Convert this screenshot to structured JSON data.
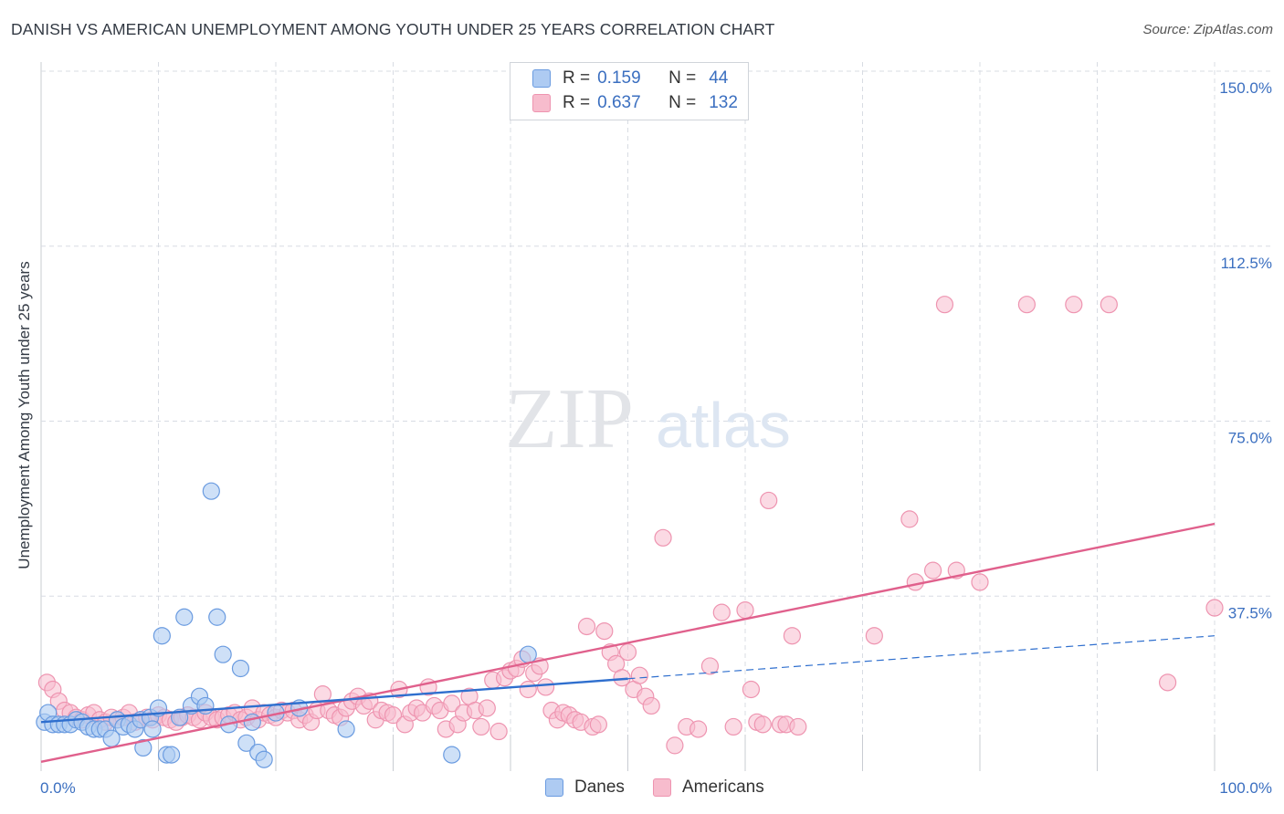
{
  "header": {
    "title": "DANISH VS AMERICAN UNEMPLOYMENT AMONG YOUTH UNDER 25 YEARS CORRELATION CHART",
    "source": "Source: ZipAtlas.com"
  },
  "watermark": {
    "zip": "ZIP",
    "atlas": "atlas"
  },
  "legend": {
    "items": [
      {
        "r_label": "R =",
        "r_value": "0.159",
        "n_label": "N =",
        "n_value": "44"
      },
      {
        "r_label": "R =",
        "r_value": "0.637",
        "n_label": "N =",
        "n_value": "132"
      }
    ]
  },
  "bottom_legend": {
    "danes": "Danes",
    "americans": "Americans"
  },
  "colors": {
    "danes_fill": "#aecbf2",
    "danes_stroke": "#6a9be0",
    "danes_line": "#2f6fce",
    "americans_fill": "#f7bccd",
    "americans_stroke": "#ee94b0",
    "americans_line": "#e0608c",
    "tick_label": "#3b6fc0",
    "grid": "#d8dce3"
  },
  "chart_data": {
    "type": "scatter",
    "title": "DANISH VS AMERICAN UNEMPLOYMENT AMONG YOUTH UNDER 25 YEARS CORRELATION CHART",
    "xlabel": "",
    "ylabel": "Unemployment Among Youth under 25 years",
    "xlim": [
      0,
      100
    ],
    "ylim": [
      0,
      150
    ],
    "x_tick_labels": [
      "0.0%",
      "100.0%"
    ],
    "y_ticks": [
      37.5,
      75.0,
      112.5,
      150.0
    ],
    "y_tick_labels": [
      "37.5%",
      "75.0%",
      "112.5%",
      "150.0%"
    ],
    "grid": true,
    "series": [
      {
        "name": "Danes",
        "r": 0.159,
        "n": 44,
        "trend": {
          "x0": 0,
          "y0": 10.5,
          "x1": 50,
          "y1": 19.8,
          "dashed_to_x": 100,
          "dashed_to_y": 29.0
        },
        "points": [
          [
            0.3,
            10.5
          ],
          [
            0.6,
            12.5
          ],
          [
            1.0,
            10.0
          ],
          [
            1.5,
            10.0
          ],
          [
            2.0,
            10.0
          ],
          [
            2.5,
            10.0
          ],
          [
            3.0,
            11.0
          ],
          [
            3.5,
            10.5
          ],
          [
            4.0,
            9.5
          ],
          [
            4.5,
            9.0
          ],
          [
            5.0,
            9.0
          ],
          [
            5.5,
            9.0
          ],
          [
            6.0,
            7.0
          ],
          [
            6.5,
            11.0
          ],
          [
            7.0,
            9.5
          ],
          [
            7.5,
            10.0
          ],
          [
            8.0,
            9.0
          ],
          [
            8.5,
            11.0
          ],
          [
            8.7,
            5.0
          ],
          [
            9.3,
            11.5
          ],
          [
            9.5,
            9.0
          ],
          [
            10.0,
            13.5
          ],
          [
            10.3,
            29.0
          ],
          [
            10.7,
            3.5
          ],
          [
            11.1,
            3.5
          ],
          [
            11.8,
            11.5
          ],
          [
            12.2,
            33.0
          ],
          [
            12.8,
            14.0
          ],
          [
            13.5,
            16.0
          ],
          [
            14.0,
            14.0
          ],
          [
            14.5,
            60.0
          ],
          [
            15.0,
            33.0
          ],
          [
            15.5,
            25.0
          ],
          [
            16.0,
            10.0
          ],
          [
            17.0,
            22.0
          ],
          [
            17.5,
            6.0
          ],
          [
            18.0,
            10.5
          ],
          [
            18.5,
            4.0
          ],
          [
            19.0,
            2.5
          ],
          [
            20.0,
            12.5
          ],
          [
            22.0,
            13.5
          ],
          [
            26.0,
            9.0
          ],
          [
            35.0,
            3.5
          ],
          [
            41.5,
            25.0
          ]
        ]
      },
      {
        "name": "Americans",
        "r": 0.637,
        "n": 132,
        "trend": {
          "x0": 0,
          "y0": 2.0,
          "x1": 100,
          "y1": 53.0
        },
        "points": [
          [
            0.5,
            19.0
          ],
          [
            1.0,
            17.5
          ],
          [
            1.5,
            15.0
          ],
          [
            2.0,
            13.0
          ],
          [
            2.5,
            12.5
          ],
          [
            3.0,
            11.5
          ],
          [
            3.5,
            11.0
          ],
          [
            4.0,
            12.0
          ],
          [
            4.5,
            12.5
          ],
          [
            5.0,
            11.0
          ],
          [
            5.5,
            10.5
          ],
          [
            6.0,
            11.5
          ],
          [
            6.5,
            11.0
          ],
          [
            7.0,
            11.5
          ],
          [
            7.5,
            12.5
          ],
          [
            8.0,
            10.5
          ],
          [
            8.5,
            11.0
          ],
          [
            9.0,
            11.5
          ],
          [
            9.5,
            11.0
          ],
          [
            10.0,
            12.0
          ],
          [
            10.5,
            11.5
          ],
          [
            11.0,
            11.0
          ],
          [
            11.5,
            10.5
          ],
          [
            12.0,
            11.5
          ],
          [
            12.5,
            12.0
          ],
          [
            13.0,
            11.5
          ],
          [
            13.5,
            11.0
          ],
          [
            14.0,
            12.5
          ],
          [
            14.5,
            11.5
          ],
          [
            15.0,
            11.0
          ],
          [
            15.5,
            11.5
          ],
          [
            16.0,
            12.0
          ],
          [
            16.5,
            12.5
          ],
          [
            17.0,
            11.0
          ],
          [
            17.5,
            11.5
          ],
          [
            18.0,
            13.5
          ],
          [
            18.5,
            11.0
          ],
          [
            19.0,
            12.5
          ],
          [
            19.5,
            12.0
          ],
          [
            20.0,
            11.5
          ],
          [
            20.5,
            13.0
          ],
          [
            21.0,
            12.5
          ],
          [
            21.5,
            13.0
          ],
          [
            22.0,
            11.0
          ],
          [
            22.5,
            12.0
          ],
          [
            23.0,
            10.5
          ],
          [
            23.5,
            13.0
          ],
          [
            24.0,
            16.5
          ],
          [
            24.5,
            13.0
          ],
          [
            25.0,
            12.0
          ],
          [
            25.5,
            11.5
          ],
          [
            26.0,
            13.5
          ],
          [
            26.5,
            15.0
          ],
          [
            27.0,
            16.0
          ],
          [
            27.5,
            14.0
          ],
          [
            28.0,
            15.0
          ],
          [
            28.5,
            11.0
          ],
          [
            29.0,
            13.0
          ],
          [
            29.5,
            12.5
          ],
          [
            30.0,
            12.0
          ],
          [
            30.5,
            17.5
          ],
          [
            31.0,
            10.0
          ],
          [
            31.5,
            12.5
          ],
          [
            32.0,
            13.5
          ],
          [
            32.5,
            12.5
          ],
          [
            33.0,
            18.0
          ],
          [
            33.5,
            14.0
          ],
          [
            34.0,
            13.0
          ],
          [
            34.5,
            9.0
          ],
          [
            35.0,
            14.5
          ],
          [
            35.5,
            10.0
          ],
          [
            36.0,
            12.5
          ],
          [
            36.5,
            16.0
          ],
          [
            37.0,
            13.0
          ],
          [
            37.5,
            9.5
          ],
          [
            38.0,
            13.5
          ],
          [
            38.5,
            19.5
          ],
          [
            39.0,
            8.5
          ],
          [
            39.5,
            20.0
          ],
          [
            40.0,
            21.5
          ],
          [
            40.5,
            22.0
          ],
          [
            41.0,
            24.0
          ],
          [
            41.5,
            17.5
          ],
          [
            42.0,
            21.0
          ],
          [
            42.5,
            22.5
          ],
          [
            43.0,
            18.0
          ],
          [
            43.5,
            13.0
          ],
          [
            44.0,
            11.0
          ],
          [
            44.5,
            12.5
          ],
          [
            45.0,
            12.0
          ],
          [
            45.5,
            11.0
          ],
          [
            46.0,
            10.5
          ],
          [
            46.5,
            31.0
          ],
          [
            47.0,
            9.5
          ],
          [
            47.5,
            10.0
          ],
          [
            48.0,
            30.0
          ],
          [
            48.5,
            25.5
          ],
          [
            49.0,
            23.0
          ],
          [
            49.5,
            20.0
          ],
          [
            50.0,
            25.5
          ],
          [
            50.5,
            17.5
          ],
          [
            51.0,
            20.5
          ],
          [
            51.5,
            16.0
          ],
          [
            52.0,
            14.0
          ],
          [
            53.0,
            50.0
          ],
          [
            54.0,
            5.5
          ],
          [
            55.0,
            9.5
          ],
          [
            56.0,
            9.0
          ],
          [
            57.0,
            22.5
          ],
          [
            58.0,
            34.0
          ],
          [
            59.0,
            9.5
          ],
          [
            60.0,
            34.5
          ],
          [
            60.5,
            17.5
          ],
          [
            61.0,
            10.5
          ],
          [
            61.5,
            10.0
          ],
          [
            62.0,
            58.0
          ],
          [
            63.0,
            10.0
          ],
          [
            63.5,
            10.0
          ],
          [
            64.0,
            29.0
          ],
          [
            64.5,
            9.5
          ],
          [
            71.0,
            29.0
          ],
          [
            74.0,
            54.0
          ],
          [
            74.5,
            40.5
          ],
          [
            76.0,
            43.0
          ],
          [
            77.0,
            100.0
          ],
          [
            78.0,
            43.0
          ],
          [
            80.0,
            40.5
          ],
          [
            84.0,
            100.0
          ],
          [
            88.0,
            100.0
          ],
          [
            91.0,
            100.0
          ],
          [
            96.0,
            19.0
          ],
          [
            100.0,
            35.0
          ]
        ]
      }
    ]
  }
}
